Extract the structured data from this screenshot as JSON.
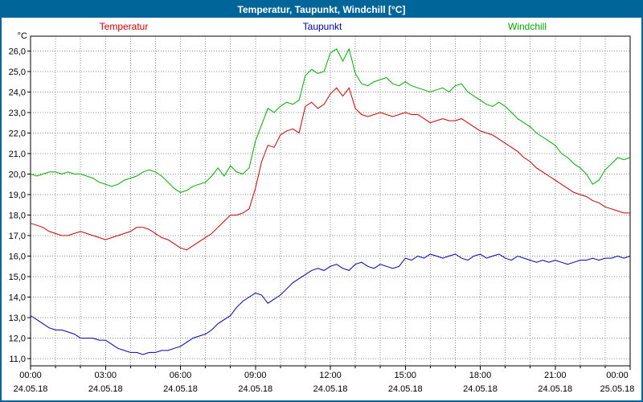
{
  "window": {
    "title": "Temperatur, Taupunkt, Windchill [°C]"
  },
  "colors": {
    "title_bar": "#006699",
    "border": "#006699",
    "background": "#ffffff",
    "grid": "#8c8c8c",
    "axis": "#000000",
    "temperatur": "#cc0000",
    "taupunkt": "#0000aa",
    "windchill": "#00aa00"
  },
  "legend": {
    "items": [
      {
        "label": "Temperatur",
        "color": "#cc0000"
      },
      {
        "label": "Taupunkt",
        "color": "#0000aa"
      },
      {
        "label": "Windchill",
        "color": "#00aa00"
      }
    ]
  },
  "chart_data": {
    "type": "line",
    "title": "Temperatur, Taupunkt, Windchill [°C]",
    "xlabel": "",
    "ylabel": "°C",
    "grid": "dotted",
    "legend_position": "top",
    "ylim": [
      10.65,
      26.72
    ],
    "xlim_hours": [
      0,
      24
    ],
    "y_gridline_step": 1,
    "x_gridline_step_hours": 1,
    "y_ticks": [
      {
        "value": 26,
        "label": "26,0"
      },
      {
        "value": 25,
        "label": "25,0"
      },
      {
        "value": 24,
        "label": "24,0"
      },
      {
        "value": 23,
        "label": "23,0"
      },
      {
        "value": 22,
        "label": "22,0"
      },
      {
        "value": 21,
        "label": "21,0"
      },
      {
        "value": 20,
        "label": "20,0"
      },
      {
        "value": 19,
        "label": "19,0"
      },
      {
        "value": 18,
        "label": "18,0"
      },
      {
        "value": 17,
        "label": "17,0"
      },
      {
        "value": 16,
        "label": "16,0"
      },
      {
        "value": 15,
        "label": "15,0"
      },
      {
        "value": 14,
        "label": "14,0"
      },
      {
        "value": 13,
        "label": "13,0"
      },
      {
        "value": 12,
        "label": "12,0"
      },
      {
        "value": 11,
        "label": "11,0"
      }
    ],
    "x_ticks": [
      {
        "hour": 0,
        "time": "00:00",
        "date": "24.05.18"
      },
      {
        "hour": 3,
        "time": "03:00",
        "date": "24.05.18"
      },
      {
        "hour": 6,
        "time": "06:00",
        "date": "24.05.18"
      },
      {
        "hour": 9,
        "time": "09:00",
        "date": "24.05.18"
      },
      {
        "hour": 12,
        "time": "12:00",
        "date": "24.05.18"
      },
      {
        "hour": 15,
        "time": "15:00",
        "date": "24.05.18"
      },
      {
        "hour": 18,
        "time": "18:00",
        "date": "24.05.18"
      },
      {
        "hour": 21,
        "time": "21:00",
        "date": "24.05.18"
      },
      {
        "hour": 24,
        "time": "00:00",
        "date": "25.05.18"
      }
    ],
    "x": {
      "start_hour": 0,
      "step_hours": 0.25,
      "count": 97
    },
    "series": [
      {
        "name": "Temperatur",
        "color": "#cc0000",
        "values": [
          17.6,
          17.5,
          17.4,
          17.2,
          17.1,
          17.0,
          17.0,
          17.1,
          17.2,
          17.1,
          17.0,
          16.9,
          16.8,
          16.9,
          17.0,
          17.1,
          17.2,
          17.4,
          17.4,
          17.3,
          17.1,
          16.9,
          16.8,
          16.6,
          16.4,
          16.3,
          16.5,
          16.7,
          16.9,
          17.1,
          17.4,
          17.7,
          18.0,
          18.0,
          18.1,
          18.3,
          19.3,
          20.6,
          21.4,
          21.3,
          21.9,
          22.1,
          22.2,
          22.0,
          23.3,
          23.5,
          23.2,
          23.4,
          23.9,
          24.2,
          23.8,
          24.2,
          23.2,
          22.9,
          22.8,
          22.9,
          23.0,
          22.9,
          22.8,
          22.9,
          23.0,
          22.9,
          22.9,
          22.7,
          22.5,
          22.6,
          22.7,
          22.6,
          22.6,
          22.7,
          22.5,
          22.3,
          22.1,
          22.0,
          21.9,
          21.7,
          21.5,
          21.3,
          21.1,
          20.8,
          20.6,
          20.3,
          20.1,
          19.9,
          19.7,
          19.5,
          19.3,
          19.1,
          19.0,
          18.9,
          18.7,
          18.6,
          18.4,
          18.3,
          18.2,
          18.1,
          18.1
        ]
      },
      {
        "name": "Taupunkt",
        "color": "#0000aa",
        "values": [
          13.1,
          12.9,
          12.7,
          12.5,
          12.4,
          12.4,
          12.3,
          12.2,
          12.0,
          12.0,
          12.0,
          11.9,
          11.9,
          11.7,
          11.5,
          11.4,
          11.3,
          11.3,
          11.2,
          11.3,
          11.3,
          11.4,
          11.4,
          11.5,
          11.6,
          11.8,
          12.0,
          12.1,
          12.2,
          12.4,
          12.7,
          12.9,
          13.1,
          13.5,
          13.8,
          14.0,
          14.2,
          14.1,
          13.7,
          13.9,
          14.1,
          14.4,
          14.7,
          14.9,
          15.1,
          15.3,
          15.4,
          15.3,
          15.5,
          15.6,
          15.4,
          15.3,
          15.6,
          15.7,
          15.5,
          15.4,
          15.6,
          15.5,
          15.4,
          15.5,
          15.9,
          15.8,
          16.0,
          15.9,
          16.1,
          16.0,
          15.9,
          16.0,
          16.1,
          15.9,
          15.8,
          16.0,
          16.1,
          15.9,
          16.0,
          16.1,
          15.9,
          15.8,
          16.0,
          15.9,
          15.8,
          15.7,
          15.8,
          15.7,
          15.8,
          15.7,
          15.6,
          15.7,
          15.8,
          15.8,
          15.9,
          15.8,
          15.9,
          15.9,
          16.0,
          15.9,
          16.0
        ]
      },
      {
        "name": "Windchill",
        "color": "#00aa00",
        "values": [
          20.0,
          19.9,
          20.0,
          20.1,
          20.1,
          20.0,
          20.1,
          20.0,
          20.0,
          19.9,
          19.8,
          19.6,
          19.5,
          19.4,
          19.5,
          19.7,
          19.8,
          19.9,
          20.1,
          20.2,
          20.1,
          19.9,
          19.6,
          19.3,
          19.1,
          19.2,
          19.4,
          19.5,
          19.6,
          19.9,
          20.3,
          19.9,
          20.4,
          20.1,
          20.0,
          20.3,
          21.6,
          22.4,
          23.2,
          23.0,
          23.3,
          23.5,
          23.4,
          23.6,
          24.8,
          25.1,
          24.9,
          25.0,
          25.9,
          26.1,
          25.5,
          26.1,
          24.9,
          24.4,
          24.3,
          24.5,
          24.6,
          24.7,
          24.4,
          24.3,
          24.5,
          24.3,
          24.2,
          24.1,
          24.0,
          24.1,
          24.2,
          24.0,
          24.3,
          24.4,
          24.0,
          23.8,
          23.6,
          23.4,
          23.3,
          23.5,
          23.3,
          23.0,
          22.7,
          22.5,
          22.3,
          22.0,
          21.8,
          21.6,
          21.4,
          21.0,
          20.8,
          20.5,
          20.3,
          20.0,
          19.5,
          19.7,
          20.2,
          20.5,
          20.8,
          20.7,
          20.8
        ]
      }
    ]
  }
}
